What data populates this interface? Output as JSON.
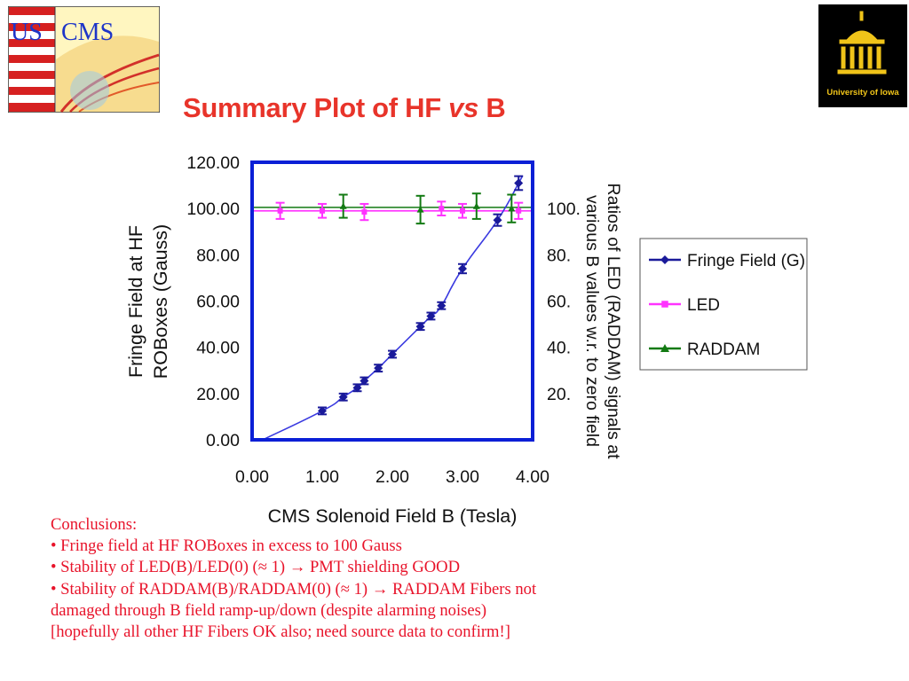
{
  "header": {
    "logo_left_text_us": "US",
    "logo_left_text_cms": "CMS",
    "logo_right_text": "University of Iowa",
    "title_main": "Summary Plot of HF ",
    "title_vs": "vs",
    "title_end": " B"
  },
  "colors": {
    "title": "#e8342a",
    "frame": "#0a1fd6",
    "fringe": "#1a1a9a",
    "led": "#ff33ff",
    "raddam": "#137a13",
    "conclusions": "#e8132a"
  },
  "chart_data": {
    "type": "scatter",
    "xlabel": "CMS Solenoid Field B (Tesla)",
    "ylabel_lines": [
      "Fringe Field at HF",
      "ROBoxes (Gauss)"
    ],
    "y2label_lines": [
      "Ratios of LED (RADDAM) signals at",
      "various B values w.r. to zero field"
    ],
    "xlim": [
      0,
      4
    ],
    "ylim": [
      0,
      120
    ],
    "x_ticks": [
      "0.00",
      "1.00",
      "2.00",
      "3.00",
      "4.00"
    ],
    "y_ticks": [
      "0.00",
      "20.00",
      "40.00",
      "60.00",
      "80.00",
      "100.00",
      "120.00"
    ],
    "y2_ticks": [
      "20.",
      "40.",
      "60.",
      "80.",
      "100."
    ],
    "legend_position": "right",
    "series": [
      {
        "name": "Fringe Field (G)",
        "marker": "diamond",
        "x": [
          1.0,
          1.3,
          1.5,
          1.6,
          1.8,
          2.0,
          2.4,
          2.55,
          2.7,
          3.0,
          3.5,
          3.8
        ],
        "y": [
          12.5,
          18.5,
          22.5,
          25.5,
          31.0,
          37.0,
          49.0,
          53.5,
          58.0,
          74.0,
          95.0,
          111.0
        ],
        "err": [
          1.5,
          1.5,
          1.5,
          1.5,
          1.5,
          1.5,
          1.5,
          1.5,
          1.5,
          2.0,
          2.5,
          3.0
        ]
      },
      {
        "name": "LED",
        "marker": "square",
        "x": [
          0.4,
          1.0,
          1.6,
          2.7,
          3.0,
          3.8
        ],
        "y": [
          99.0,
          99.0,
          98.5,
          100.0,
          99.0,
          99.0
        ],
        "err": [
          3.5,
          3.0,
          3.5,
          3.0,
          3.0,
          3.5
        ]
      },
      {
        "name": "RADDAM",
        "marker": "triangle",
        "x": [
          1.3,
          2.4,
          3.2,
          3.7
        ],
        "y": [
          101.0,
          99.5,
          101.0,
          100.0
        ],
        "err": [
          5.0,
          6.0,
          5.5,
          6.0
        ]
      }
    ],
    "fit_lines": {
      "fringe_curve": {
        "x_start": 0.15,
        "x_end": 3.85,
        "curvature": 0.25
      },
      "led_level": 99.0,
      "raddam_level": 100.5
    }
  },
  "conclusions": {
    "heading": "Conclusions:",
    "bullet1": "• Fringe field at HF ROBoxes in excess to 100 Gauss",
    "bullet2": "• Stability of LED(B)/LED(0) (≈ 1) → PMT shielding GOOD",
    "bullet3_line1": "• Stability of RADDAM(B)/RADDAM(0) (≈ 1) → RADDAM Fibers not",
    "bullet3_line2": "damaged through B field ramp-up/down (despite alarming noises)",
    "bullet3_line3": "[hopefully all other HF Fibers OK also; need source data to confirm!]"
  }
}
